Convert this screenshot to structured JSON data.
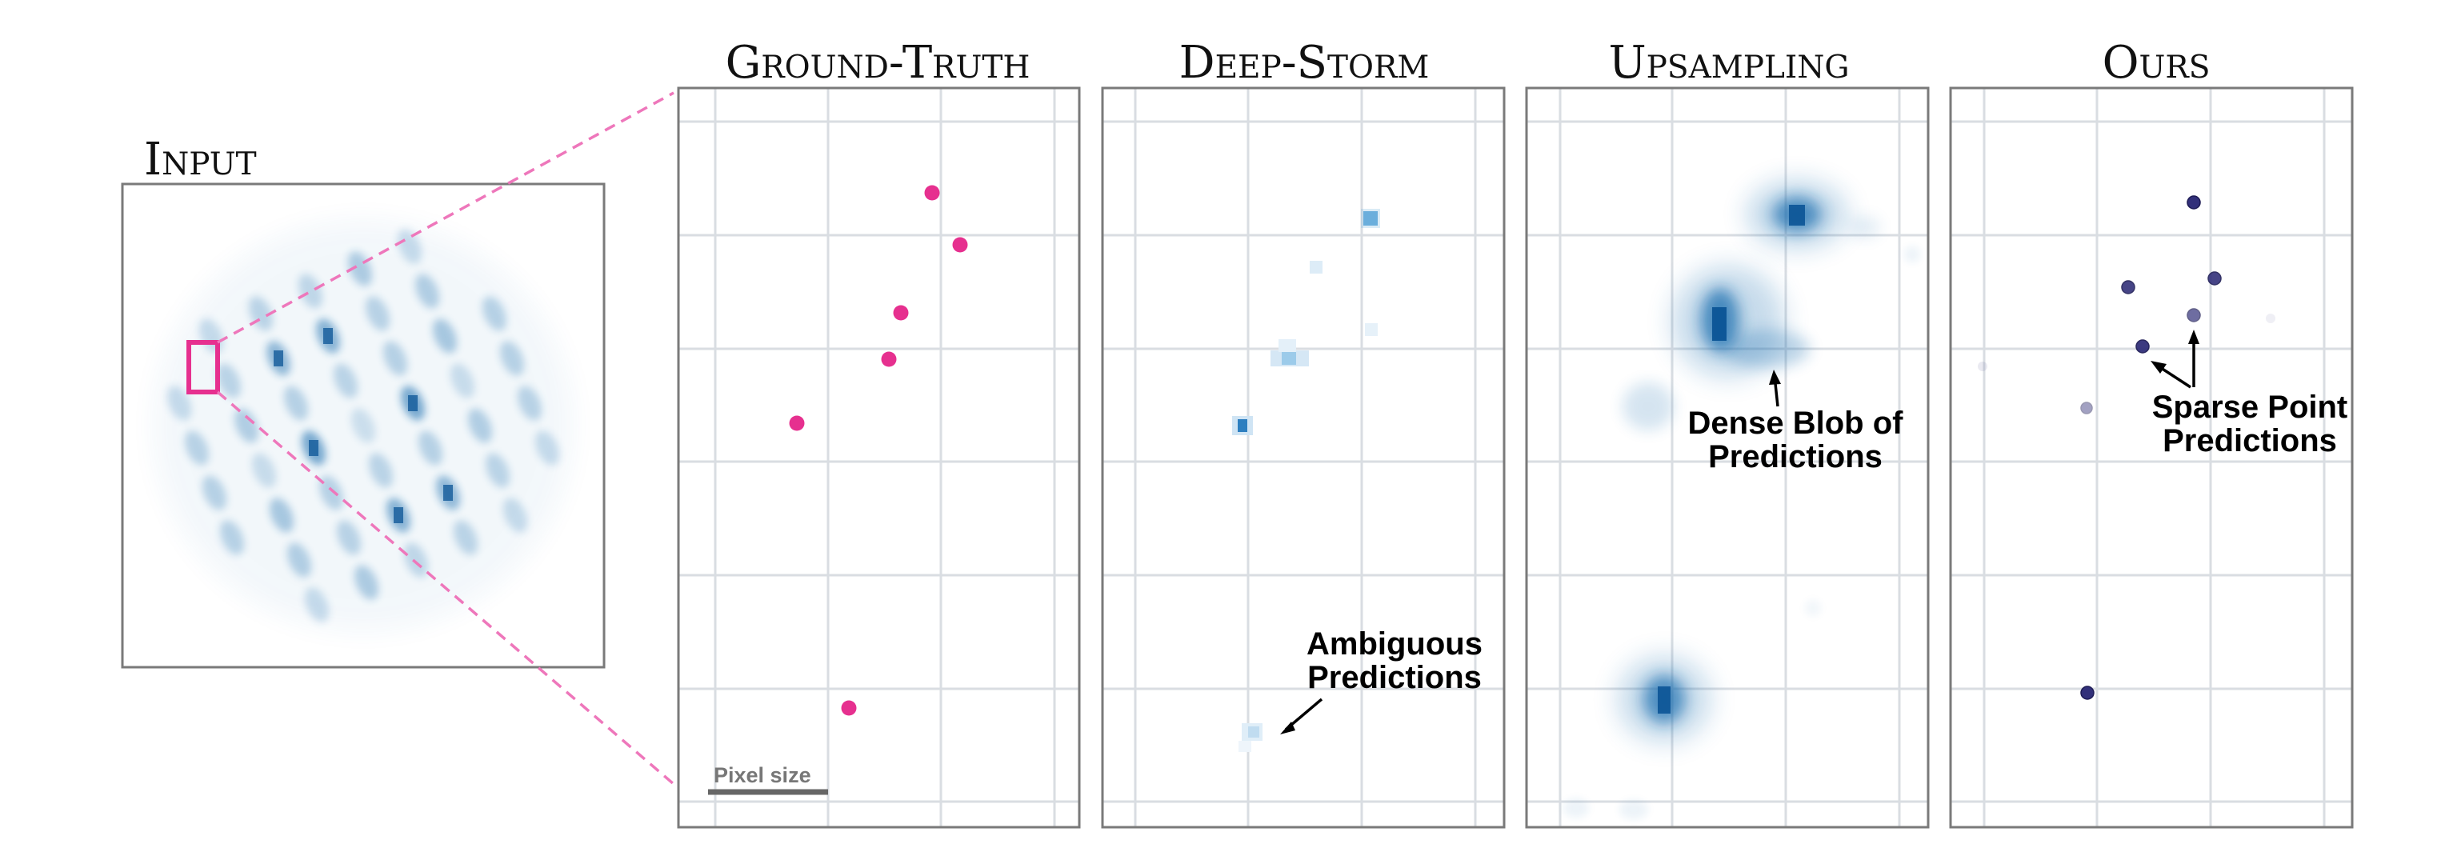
{
  "input": {
    "title": "Input"
  },
  "panels": [
    {
      "id": "ground-truth",
      "title": "Ground-Truth"
    },
    {
      "id": "deep-storm",
      "title": "Deep-Storm"
    },
    {
      "id": "upsampling",
      "title": "Upsampling"
    },
    {
      "id": "ours",
      "title": "Ours"
    }
  ],
  "annotations": {
    "scale_bar": "Pixel size",
    "ambiguous": [
      "Ambiguous",
      "Predictions"
    ],
    "dense_blob": [
      "Dense Blob of",
      "Predictions"
    ],
    "sparse": [
      "Sparse Point",
      "Predictions"
    ]
  },
  "colors": {
    "ground_truth_points": "#e6308f",
    "prediction_points": "#32307a",
    "heat": "#1b6fb0",
    "zoom_lines": "#ee77bb",
    "frame": "#7a7a7a",
    "grid": "#d9dde2"
  }
}
